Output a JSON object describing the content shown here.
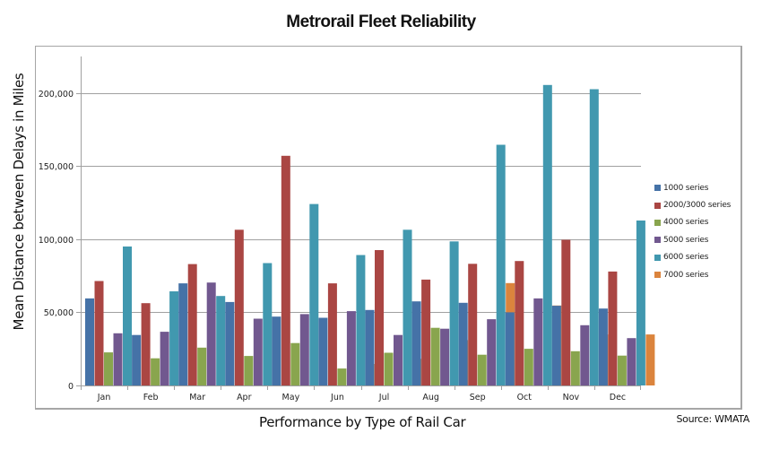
{
  "chart_data": {
    "type": "bar",
    "title": "Metrorail Fleet Reliability",
    "xlabel": "Performance by Type of Rail Car",
    "ylabel": "Mean Distance between Delays  in Miles",
    "source": "Source: WMATA",
    "ylim": [
      0,
      225000
    ],
    "yticks": [
      0,
      50000,
      100000,
      150000,
      200000
    ],
    "ytick_labels": [
      "0",
      "50,000",
      "100,000",
      "150,000",
      "200,000"
    ],
    "grid": true,
    "legend_position": "right",
    "categories": [
      "Jan",
      "Feb",
      "Mar",
      "Apr",
      "May",
      "Jun",
      "Jul",
      "Aug",
      "Sep",
      "Oct",
      "Nov",
      "Dec"
    ],
    "series": [
      {
        "name": "1000 series",
        "color": "#4572a7",
        "values": [
          59500,
          34500,
          69800,
          57100,
          47100,
          46300,
          51600,
          57500,
          56500,
          50000,
          54500,
          52600
        ]
      },
      {
        "name": "2000/3000 series",
        "color": "#aa4643",
        "values": [
          71400,
          56300,
          83000,
          106500,
          157100,
          69800,
          92600,
          72400,
          83200,
          85100,
          99600,
          77900
        ]
      },
      {
        "name": "4000 series",
        "color": "#89a54e",
        "values": [
          22600,
          18600,
          25900,
          20200,
          29000,
          11600,
          22400,
          39400,
          21000,
          25100,
          23400,
          20400
        ]
      },
      {
        "name": "5000 series",
        "color": "#71588f",
        "values": [
          35700,
          36700,
          70400,
          45700,
          48800,
          50800,
          34500,
          38800,
          45300,
          59500,
          41200,
          32400
        ]
      },
      {
        "name": "6000 series",
        "color": "#4198af",
        "values": [
          95000,
          64400,
          61200,
          83700,
          124100,
          89200,
          106500,
          98500,
          164600,
          205500,
          202600,
          112800
        ]
      },
      {
        "name": "7000 series",
        "color": "#db843d",
        "values": [
          null,
          null,
          null,
          null,
          null,
          14700,
          18200,
          31000,
          70000,
          54700,
          34900,
          34900
        ]
      }
    ]
  }
}
